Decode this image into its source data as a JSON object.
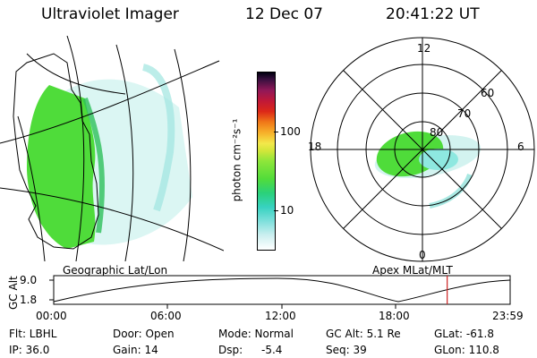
{
  "header": {
    "instrument": "Ultraviolet Imager",
    "date": "12 Dec 07",
    "time": "20:41:22 UT"
  },
  "map_left": {
    "label": "Geographic Lat/Lon"
  },
  "colorbar": {
    "unit_label": "photon cm⁻²s⁻¹",
    "ticks": [
      "100",
      "10"
    ]
  },
  "polar_plot": {
    "label": "Apex MLat/MLT",
    "mlt_labels": [
      "12",
      "18",
      "6",
      "0"
    ],
    "lat_labels": [
      "60",
      "70",
      "80"
    ]
  },
  "altitude_plot": {
    "ylabel": "GC Alt",
    "yticks": [
      "9.0",
      "1.8"
    ],
    "xticks": [
      "00:00",
      "06:00",
      "12:00",
      "18:00",
      "23:59"
    ],
    "current_time_marker_hours": 20.69
  },
  "status": {
    "row1": {
      "flt": "Flt: LBHL",
      "door": "Door: Open",
      "mode": "Mode: Normal",
      "gcalt": "GC Alt: 5.1 Re",
      "glat": "GLat: -61.8"
    },
    "row2": {
      "ip": "IP: 36.0",
      "gain": "Gain: 14",
      "dsp_label": "Dsp:",
      "dsp_value": "-5.4",
      "seq": "Seq: 39",
      "glon": "GLon: 110.8"
    }
  },
  "colors": {
    "aurora_green": "#4fdc3a",
    "aurora_cyan": "#8ee8e0",
    "line": "#000000",
    "marker": "#cc2222"
  }
}
